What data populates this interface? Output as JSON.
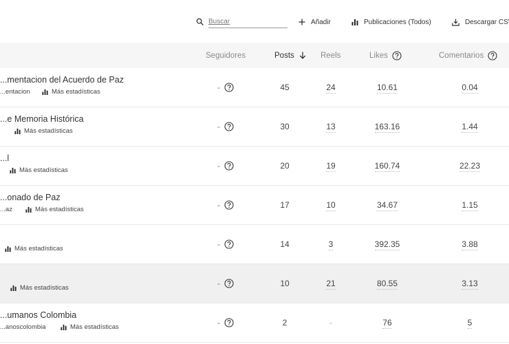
{
  "toolbar": {
    "search_placeholder": "Buscar",
    "add_label": "Añadir",
    "publications_label": "Publicaciones (Todos)",
    "download_label": "Descargar CSV"
  },
  "columns": {
    "followers": "Seguidores",
    "posts": "Posts",
    "reels": "Reels",
    "likes": "Likes",
    "comments": "Comentarios"
  },
  "rows": [
    {
      "name": "...mentacion del Acuerdo de Paz",
      "handle": "...entacion",
      "stats_label": "Más estadísticas",
      "followers": "-",
      "posts": "45",
      "reels": "24",
      "likes": "10.61",
      "comments": "0.04"
    },
    {
      "name": "...e Memoria Histórica",
      "handle": "",
      "stats_label": "Más estadísticas",
      "followers": "-",
      "posts": "30",
      "reels": "13",
      "likes": "163.16",
      "comments": "1.44"
    },
    {
      "name": "...l",
      "handle": "",
      "stats_label": "Más estadísticas",
      "followers": "-",
      "posts": "20",
      "reels": "19",
      "likes": "160.74",
      "comments": "22.23"
    },
    {
      "name": "...onado de Paz",
      "handle": "...az",
      "stats_label": "Más estadísticas",
      "followers": "-",
      "posts": "17",
      "reels": "10",
      "likes": "34.67",
      "comments": "1.15"
    },
    {
      "name": "",
      "handle": "",
      "stats_label": "Más estadísticas",
      "followers": "-",
      "posts": "14",
      "reels": "3",
      "likes": "392.35",
      "comments": "3.88"
    },
    {
      "name": "",
      "handle": "",
      "stats_label": "Más estadísticas",
      "followers": "-",
      "posts": "10",
      "reels": "21",
      "likes": "80.55",
      "comments": "3.13"
    },
    {
      "name": "...umanos Colombia",
      "handle": "...anoscolombia",
      "stats_label": "Más estadísticas",
      "followers": "-",
      "posts": "2",
      "reels": "-",
      "likes": "76",
      "comments": "5"
    }
  ]
}
